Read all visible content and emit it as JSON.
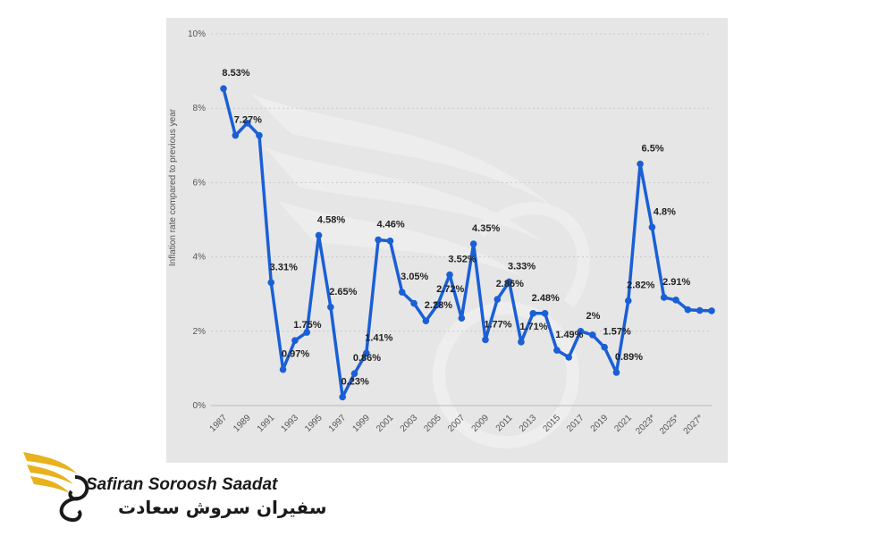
{
  "chart_data": {
    "type": "line",
    "title": "",
    "xlabel": "",
    "ylabel": "Inflation rate compared to previous year",
    "ylim": [
      0,
      10
    ],
    "yticks": [
      "0%",
      "2%",
      "4%",
      "6%",
      "8%",
      "10%"
    ],
    "grid": true,
    "x": [
      1987,
      1988,
      1989,
      1990,
      1991,
      1992,
      1993,
      1994,
      1995,
      1996,
      1997,
      1998,
      1999,
      2000,
      2001,
      2002,
      2003,
      2004,
      2005,
      2006,
      2007,
      2008,
      2009,
      2010,
      2011,
      2012,
      2013,
      2014,
      2015,
      2016,
      2017,
      2018,
      2019,
      2020,
      2021,
      2022,
      2023,
      2024,
      2025,
      2026,
      2027,
      2028
    ],
    "x_tick_labels": [
      "1987",
      "1989",
      "1991",
      "1993",
      "1995",
      "1997",
      "1999",
      "2001",
      "2003",
      "2005",
      "2007",
      "2009",
      "2011",
      "2013",
      "2015",
      "2017",
      "2019",
      "2021",
      "2023*",
      "2025*",
      "2027*"
    ],
    "series": [
      {
        "values": [
          8.53,
          7.27,
          7.6,
          7.27,
          3.31,
          0.97,
          1.75,
          1.97,
          4.58,
          2.65,
          0.23,
          0.86,
          1.41,
          4.46,
          4.43,
          3.05,
          2.75,
          2.28,
          2.72,
          3.52,
          2.35,
          4.35,
          1.77,
          2.86,
          3.33,
          1.71,
          2.48,
          2.48,
          1.49,
          1.3,
          2.0,
          1.9,
          1.57,
          0.89,
          2.82,
          6.5,
          4.8,
          2.91,
          2.84,
          2.58,
          2.56,
          2.55
        ],
        "color": "#1a5fd6"
      }
    ],
    "data_labels": [
      {
        "year": 1987,
        "text": "8.53%"
      },
      {
        "year": 1988,
        "text": "7.27%"
      },
      {
        "year": 1991,
        "text": "3.31%"
      },
      {
        "year": 1992,
        "text": "0.97%"
      },
      {
        "year": 1993,
        "text": "1.75%"
      },
      {
        "year": 1995,
        "text": "4.58%"
      },
      {
        "year": 1996,
        "text": "2.65%"
      },
      {
        "year": 1997,
        "text": "0.23%"
      },
      {
        "year": 1998,
        "text": "0.86%"
      },
      {
        "year": 1999,
        "text": "1.41%"
      },
      {
        "year": 2000,
        "text": "4.46%"
      },
      {
        "year": 2002,
        "text": "3.05%"
      },
      {
        "year": 2004,
        "text": "2.28%"
      },
      {
        "year": 2005,
        "text": "2.72%"
      },
      {
        "year": 2006,
        "text": "3.52%"
      },
      {
        "year": 2008,
        "text": "4.35%"
      },
      {
        "year": 2009,
        "text": "1.77%"
      },
      {
        "year": 2010,
        "text": "2.86%"
      },
      {
        "year": 2011,
        "text": "3.33%"
      },
      {
        "year": 2012,
        "text": "1.71%"
      },
      {
        "year": 2013,
        "text": "2.48%"
      },
      {
        "year": 2015,
        "text": "1.49%"
      },
      {
        "year": 2017,
        "text": "2%"
      },
      {
        "year": 2019,
        "text": "1.57%"
      },
      {
        "year": 2020,
        "text": "0.89%"
      },
      {
        "year": 2021,
        "text": "2.82%"
      },
      {
        "year": 2022,
        "text": "6.5%"
      },
      {
        "year": 2023,
        "text": "4.8%"
      },
      {
        "year": 2024,
        "text": "2.91%"
      }
    ]
  },
  "brand": {
    "name_en": "Safiran Soroosh Saadat",
    "name_fa": "سفیران سروش سعادت",
    "gold_color": "#e8b21e",
    "dark_color": "#1a1a1a"
  }
}
